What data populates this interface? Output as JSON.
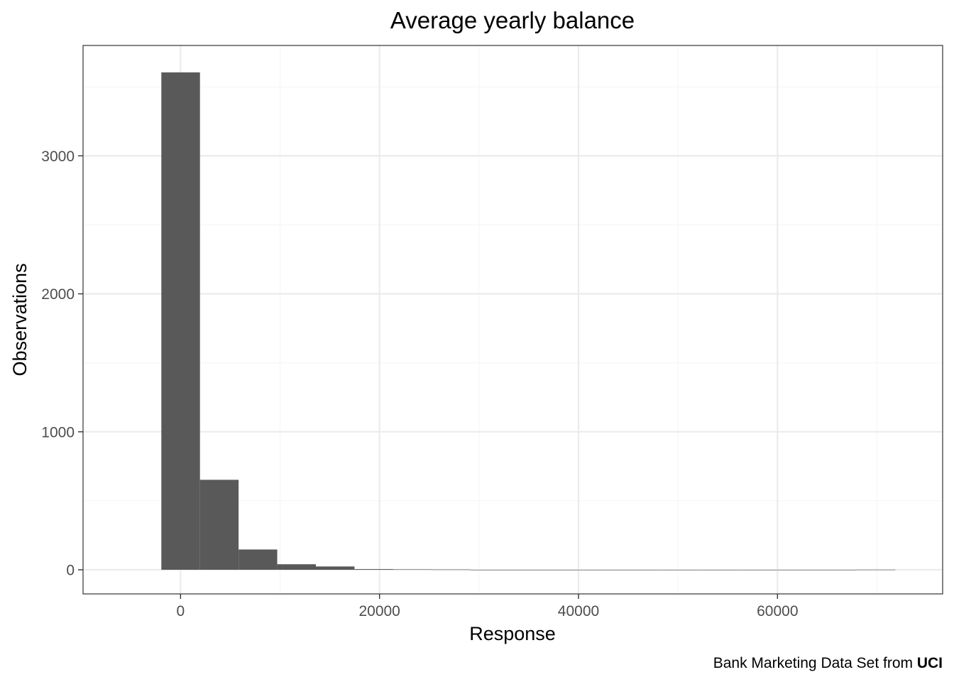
{
  "chart_data": {
    "type": "bar",
    "title": "Average yearly balance",
    "xlabel": "Response",
    "ylabel": "Observations",
    "caption_prefix": "Bank Marketing Data Set from ",
    "caption_emphasis": "UCI",
    "bin_edges": [
      -1931,
      1952,
      5835,
      9718,
      13601,
      17484,
      21367,
      25250,
      29133,
      33016,
      36899,
      40782,
      44665,
      48548,
      52431,
      56314,
      60197,
      64080,
      67963,
      71846
    ],
    "values": [
      3605,
      652,
      147,
      40,
      24,
      5,
      3,
      2,
      0,
      0,
      0,
      0,
      0,
      0,
      0,
      0,
      0,
      0,
      1
    ],
    "xlim": [
      -9800,
      76600
    ],
    "ylim": [
      -175,
      3800
    ],
    "x_major_ticks": [
      0,
      20000,
      40000,
      60000
    ],
    "x_minor_ticks": [
      -10000,
      10000,
      30000,
      50000,
      70000
    ],
    "y_major_ticks": [
      0,
      1000,
      2000,
      3000
    ],
    "y_minor_ticks": [
      500,
      1500,
      2500,
      3500
    ],
    "x_tick_labels": [
      "0",
      "20000",
      "40000",
      "60000"
    ],
    "y_tick_labels": [
      "0",
      "1000",
      "2000",
      "3000"
    ],
    "grid": true,
    "colors": {
      "bar": "#595959",
      "grid_major": "#ebebeb",
      "grid_minor": "#f4f4f4",
      "panel_border": "#333333"
    }
  }
}
